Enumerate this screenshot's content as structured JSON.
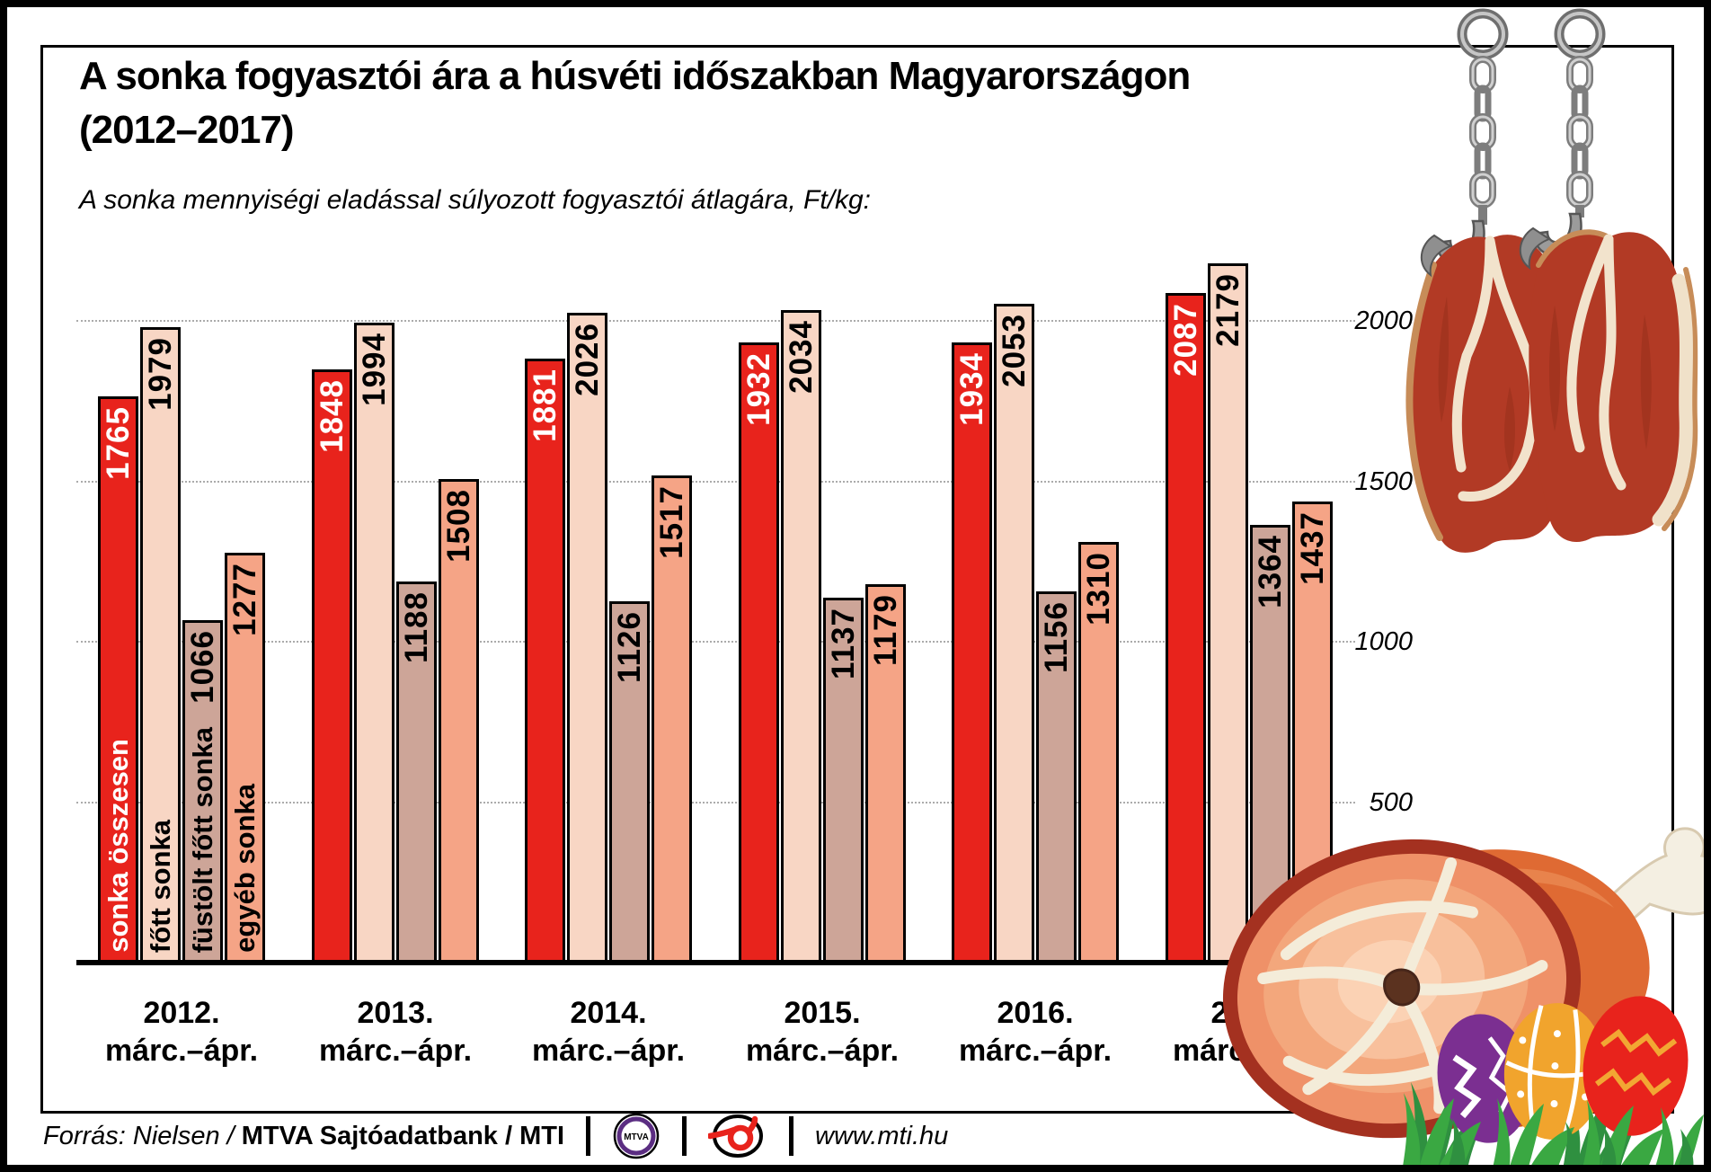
{
  "title": {
    "line1": "A sonka fogyasztói ára a húsvéti időszakban Magyarországon",
    "line2": "(2012–2017)"
  },
  "subtitle": "A sonka mennyiségi eladással súlyozott fogyasztói átlagára, Ft/kg:",
  "chart_data": {
    "type": "bar",
    "unit": "Ft/kg",
    "categories": [
      {
        "year": "2012.",
        "months": "márc.–ápr."
      },
      {
        "year": "2013.",
        "months": "márc.–ápr."
      },
      {
        "year": "2014.",
        "months": "márc.–ápr."
      },
      {
        "year": "2015.",
        "months": "márc.–ápr."
      },
      {
        "year": "2016.",
        "months": "márc.–ápr."
      },
      {
        "year": "2017.",
        "months": "márc.–ápr."
      }
    ],
    "series": [
      {
        "key": "sonka-osszesen",
        "name": "sonka összesen",
        "color": "#e8231c",
        "label_color": "#ffffff",
        "values": [
          1765,
          1848,
          1881,
          1932,
          1934,
          2087
        ]
      },
      {
        "key": "fott-sonka",
        "name": "főtt sonka",
        "color": "#f8d6c4",
        "label_color": "#000000",
        "values": [
          1979,
          1994,
          2026,
          2034,
          2053,
          2179
        ]
      },
      {
        "key": "fustolt-fott-sonka",
        "name": "füstölt főtt sonka",
        "color": "#cda598",
        "label_color": "#000000",
        "values": [
          1066,
          1188,
          1126,
          1137,
          1156,
          1364
        ]
      },
      {
        "key": "egyeb-sonka",
        "name": "egyéb sonka",
        "color": "#f5a486",
        "label_color": "#000000",
        "values": [
          1277,
          1508,
          1517,
          1179,
          1310,
          1437
        ]
      }
    ],
    "y_ticks": [
      2000,
      1500,
      1000,
      500
    ],
    "ylim": [
      0,
      2300
    ],
    "grid": "dotted-horizontal",
    "legend_position": "labels-on-first-group-bars"
  },
  "footer": {
    "source_italic": "Forrás: Nielsen /",
    "source_bold": "MTVA Sajtóadatbank / MTI",
    "mtva_logo_text": "MTVA",
    "website": "www.mti.hu"
  },
  "illustrations": {
    "top_right": "two-hams-hanging-on-chain-hooks",
    "bottom_right": "easter-ham-with-painted-eggs-and-grass"
  }
}
